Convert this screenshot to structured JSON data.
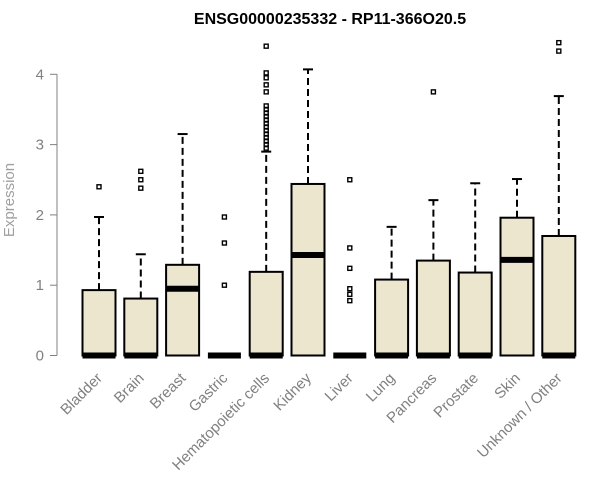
{
  "chart_data": {
    "type": "boxplot",
    "title": "ENSG00000235332 - RP11-366O20.5",
    "xlabel": "",
    "ylabel": "Expression",
    "ylim": [
      0,
      4.5
    ],
    "yticks": [
      0,
      1,
      2,
      3,
      4
    ],
    "box_fill": "#EDE6CF",
    "categories": [
      "Bladder",
      "Brain",
      "Breast",
      "Gastric",
      "Hematopoietic cells",
      "Kidney",
      "Liver",
      "Lung",
      "Pancreas",
      "Prostate",
      "Skin",
      "Unknown / Other"
    ],
    "boxes": [
      {
        "q1": 0,
        "median": 0,
        "q3": 0.93,
        "whisker_low": 0,
        "whisker_high": 1.97,
        "outliers": [
          2.4
        ]
      },
      {
        "q1": 0,
        "median": 0,
        "q3": 0.81,
        "whisker_low": 0,
        "whisker_high": 1.44,
        "outliers": [
          2.38,
          2.5,
          2.62
        ]
      },
      {
        "q1": 0,
        "median": 0.95,
        "q3": 1.29,
        "whisker_low": 0,
        "whisker_high": 3.15,
        "outliers": []
      },
      {
        "q1": 0,
        "median": 0,
        "q3": 0,
        "whisker_low": 0,
        "whisker_high": 0,
        "outliers": [
          1.0,
          1.6,
          1.97
        ]
      },
      {
        "q1": 0,
        "median": 0,
        "q3": 1.19,
        "whisker_low": 0,
        "whisker_high": 2.9,
        "outliers": [
          2.95,
          3.0,
          3.05,
          3.1,
          3.15,
          3.2,
          3.25,
          3.3,
          3.35,
          3.4,
          3.45,
          3.5,
          3.55,
          3.75,
          3.85,
          3.95,
          4.02,
          4.4
        ]
      },
      {
        "q1": 0,
        "median": 1.43,
        "q3": 2.44,
        "whisker_low": 0,
        "whisker_high": 4.07,
        "outliers": []
      },
      {
        "q1": 0,
        "median": 0,
        "q3": 0,
        "whisker_low": 0,
        "whisker_high": 0,
        "outliers": [
          0.78,
          0.87,
          0.95,
          1.24,
          1.53,
          2.5
        ]
      },
      {
        "q1": 0,
        "median": 0,
        "q3": 1.08,
        "whisker_low": 0,
        "whisker_high": 1.83,
        "outliers": []
      },
      {
        "q1": 0,
        "median": 0,
        "q3": 1.35,
        "whisker_low": 0,
        "whisker_high": 2.21,
        "outliers": [
          3.75
        ]
      },
      {
        "q1": 0,
        "median": 0,
        "q3": 1.18,
        "whisker_low": 0,
        "whisker_high": 2.45,
        "outliers": []
      },
      {
        "q1": 0,
        "median": 1.36,
        "q3": 1.96,
        "whisker_low": 0,
        "whisker_high": 2.51,
        "outliers": []
      },
      {
        "q1": 0,
        "median": 0,
        "q3": 1.7,
        "whisker_low": 0,
        "whisker_high": 3.69,
        "outliers": [
          4.33,
          4.45
        ]
      }
    ]
  }
}
